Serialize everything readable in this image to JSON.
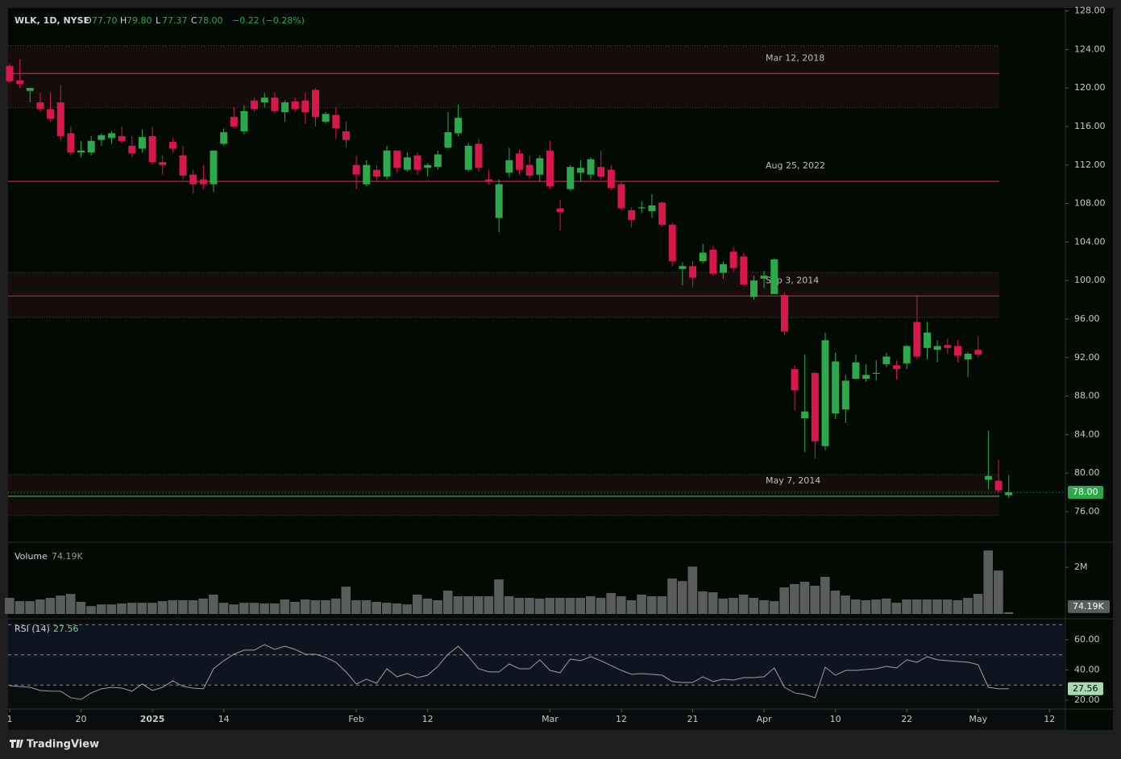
{
  "chart_data": [
    {
      "type": "candlestick",
      "symbol": "WLK, 1D, NYSE",
      "legend": [
        {
          "key": "O",
          "value": "77.70"
        },
        {
          "key": "H",
          "value": "79.80"
        },
        {
          "key": "L",
          "value": "77.37"
        },
        {
          "key": "C",
          "value": "78.00"
        }
      ],
      "change": "−0.22 (−0.28%)",
      "up_color": "#2ea84c",
      "down_color": "#d8174a",
      "ylim": [
        72.9,
        128.3
      ],
      "yticks": [
        {
          "value": 76,
          "label": "76.00"
        },
        {
          "value": 80,
          "label": "80.00"
        },
        {
          "value": 84,
          "label": "84.00"
        },
        {
          "value": 88,
          "label": "88.00"
        },
        {
          "value": 92,
          "label": "92.00"
        },
        {
          "value": 96,
          "label": "96.00"
        },
        {
          "value": 100,
          "label": "100.00"
        },
        {
          "value": 104,
          "label": "104.00"
        },
        {
          "value": 108,
          "label": "108.00"
        },
        {
          "value": 112,
          "label": "112.00"
        },
        {
          "value": 116,
          "label": "116.00"
        },
        {
          "value": 120,
          "label": "120.00"
        },
        {
          "value": 124,
          "label": "124.00"
        },
        {
          "value": 128,
          "label": "128.00"
        }
      ],
      "xticks": [
        {
          "value": 0,
          "label": "1"
        },
        {
          "value": 7,
          "label": "20"
        },
        {
          "value": 14,
          "label": "2025"
        },
        {
          "value": 21,
          "label": "14"
        },
        {
          "value": 34,
          "label": "Feb"
        },
        {
          "value": 41,
          "label": "12"
        },
        {
          "value": 53,
          "label": "Mar"
        },
        {
          "value": 60,
          "label": "12"
        },
        {
          "value": 67,
          "label": "21"
        },
        {
          "value": 74,
          "label": "Apr"
        },
        {
          "value": 81,
          "label": "10"
        },
        {
          "value": 88,
          "label": "22"
        },
        {
          "value": 95,
          "label": "May"
        },
        {
          "value": 102,
          "label": "12"
        }
      ],
      "last": {
        "value": 78,
        "label": "78.00"
      },
      "levels": [
        {
          "label": "Mar 12, 2018",
          "value": 121.5,
          "zone": [
            117.95,
            124.4
          ],
          "color": "#d8174a"
        },
        {
          "label": "Aug 25, 2022",
          "value": 110.3,
          "color": "#d8174a"
        },
        {
          "label": "Sep 3, 2014",
          "value": 98.4,
          "zone": [
            96.15,
            100.85
          ],
          "color": "#d8174a"
        },
        {
          "label": "May 7, 2014",
          "value": 77.6,
          "zone": [
            75.6,
            79.85
          ],
          "color": "#2ea84c"
        }
      ],
      "open": [
        122.3,
        120.8,
        119.7,
        118.5,
        117.8,
        118.5,
        115.3,
        113.3,
        113.3,
        114.6,
        114.8,
        115,
        114,
        113.7,
        115,
        112.3,
        114.4,
        113,
        111,
        110.5,
        110,
        114.2,
        117,
        115.5,
        118.7,
        118.5,
        119,
        117.5,
        118.6,
        118.7,
        119.8,
        116.5,
        117.2,
        115.5,
        112,
        110,
        111.5,
        110.8,
        113.5,
        111.5,
        113,
        111.7,
        111.8,
        113.8,
        115.3,
        111.5,
        114.2,
        110.5,
        106.5,
        111.2,
        113.2,
        112,
        111,
        113.5,
        107.5,
        109.5,
        111.2,
        111,
        111.8,
        111.5,
        110,
        107.3,
        107.5,
        107.2,
        108.1,
        105.8,
        101.2,
        101.5,
        102,
        103.2,
        100.8,
        103,
        102.5,
        98.3,
        100.2,
        98.6,
        98.5,
        90.8,
        85.7,
        90.4,
        82.8,
        86.2,
        86.6,
        89.8,
        89.8,
        90.3,
        91.3,
        91.2,
        91.4,
        95.7,
        93,
        92.8,
        93.3,
        93.2,
        91.8,
        92.8,
        79.3,
        79.2,
        77.7
      ],
      "high": [
        122.5,
        123,
        120,
        119.5,
        119.5,
        120.3,
        116,
        114.5,
        115,
        115.3,
        115.5,
        116,
        115,
        115.7,
        116,
        113,
        114.8,
        114,
        111.5,
        112,
        113.5,
        115.8,
        118,
        118.2,
        119,
        119.5,
        119.5,
        118.7,
        119,
        119.5,
        120,
        117.5,
        118,
        116.5,
        113,
        112.5,
        112,
        114,
        113.5,
        113.3,
        113.3,
        112.2,
        113.5,
        117.5,
        118.3,
        114.3,
        114.7,
        111.5,
        110.5,
        113.8,
        113.6,
        113,
        113,
        114.5,
        108.4,
        112,
        112.5,
        112.8,
        113.5,
        112,
        110.2,
        107.6,
        108.2,
        109,
        108.2,
        106,
        101.9,
        102,
        103.8,
        103.6,
        102,
        103.5,
        102.9,
        100.5,
        101,
        102.3,
        98.8,
        91.2,
        92.3,
        90.5,
        94.6,
        92.5,
        90.2,
        92.3,
        91.3,
        91.7,
        92.5,
        91.7,
        93.3,
        98.5,
        95.7,
        93.8,
        94,
        93.8,
        92.6,
        94.2,
        84.4,
        81.4,
        79.8
      ],
      "low": [
        120.5,
        120,
        118.5,
        117.5,
        116.5,
        114.5,
        113,
        112.8,
        113,
        114,
        114.2,
        114.3,
        112.8,
        113.3,
        112,
        111,
        113.3,
        110.5,
        109,
        109.5,
        109.2,
        114,
        115.8,
        115.2,
        117.5,
        118,
        117.3,
        116.5,
        117.5,
        116.3,
        116,
        116.3,
        114.7,
        113.8,
        109.5,
        109.8,
        110.2,
        110.5,
        111.2,
        111.3,
        111,
        110.8,
        111.5,
        113.7,
        115,
        111.3,
        111.3,
        110,
        105,
        110.7,
        111,
        110.6,
        110.3,
        109.5,
        105.2,
        109.3,
        110.3,
        110.5,
        110.5,
        109.4,
        107.3,
        105.5,
        107,
        106.5,
        105.6,
        101.5,
        99.5,
        99.3,
        101.8,
        100.5,
        100.2,
        100.9,
        99.4,
        98,
        99.2,
        98.6,
        94.3,
        86.5,
        82.2,
        81.5,
        82.4,
        85.6,
        85.2,
        89.7,
        89.5,
        89.6,
        91,
        89.7,
        90.8,
        91.8,
        91.8,
        91.5,
        92.4,
        91.5,
        90,
        92,
        78.3,
        78,
        77.4
      ],
      "close": [
        120.7,
        120.4,
        120,
        117.8,
        116.8,
        115,
        113.3,
        113.5,
        114.5,
        115.1,
        115.3,
        114.5,
        113.2,
        114.9,
        112.3,
        112,
        113.7,
        110.9,
        110,
        110,
        113.5,
        115.4,
        116,
        117.6,
        117.8,
        119,
        117.6,
        118.5,
        117.8,
        117.5,
        117,
        117.3,
        115.8,
        114.6,
        111,
        112,
        110.8,
        113.5,
        111.7,
        112.8,
        111.5,
        112,
        113.1,
        115.4,
        116.9,
        114,
        111.7,
        110.3,
        110,
        112.5,
        111.5,
        110.9,
        112.7,
        109.8,
        107.1,
        111.8,
        111.7,
        112.6,
        110.8,
        109.6,
        107.5,
        106.3,
        107.6,
        107.8,
        105.8,
        102,
        101.5,
        100.3,
        102.9,
        100.7,
        101.7,
        101.3,
        99.6,
        100,
        100.5,
        102.2,
        94.7,
        88.6,
        86.4,
        83.3,
        93.8,
        91.6,
        89.6,
        91.5,
        90.2,
        90.4,
        92.1,
        90.8,
        93.2,
        92.1,
        94.6,
        93.2,
        93,
        92.2,
        92.4,
        92.3,
        79.7,
        78.2,
        78
      ]
    },
    {
      "type": "bar",
      "title": "Volume",
      "last_label": "74.19K",
      "color": "#5b5c5e",
      "ylim": [
        0,
        2830000
      ],
      "yticks": [
        {
          "value": 2000000,
          "label": "2M"
        }
      ],
      "values": [
        690000,
        550000,
        550000,
        620000,
        690000,
        790000,
        860000,
        520000,
        340000,
        410000,
        410000,
        450000,
        480000,
        480000,
        480000,
        550000,
        590000,
        590000,
        590000,
        660000,
        830000,
        480000,
        410000,
        480000,
        480000,
        450000,
        450000,
        620000,
        520000,
        620000,
        590000,
        590000,
        660000,
        1170000,
        590000,
        590000,
        520000,
        480000,
        450000,
        410000,
        830000,
        660000,
        590000,
        1000000,
        760000,
        760000,
        760000,
        760000,
        1480000,
        760000,
        690000,
        690000,
        660000,
        690000,
        690000,
        690000,
        690000,
        760000,
        690000,
        900000,
        760000,
        590000,
        830000,
        760000,
        760000,
        1520000,
        1410000,
        2030000,
        970000,
        930000,
        660000,
        690000,
        830000,
        690000,
        590000,
        550000,
        1140000,
        1280000,
        1380000,
        1210000,
        1590000,
        1000000,
        790000,
        620000,
        590000,
        620000,
        660000,
        480000,
        620000,
        620000,
        620000,
        620000,
        620000,
        590000,
        690000,
        860000,
        2720000,
        1860000,
        74190
      ]
    },
    {
      "type": "line",
      "title": "RSI (14)",
      "last_label": "27.56",
      "color": "#9e9e9e",
      "band_color": "#0e1520",
      "ylim": [
        14.1,
        72.8
      ],
      "bands": [
        70,
        50,
        30
      ],
      "yticks": [
        {
          "value": 20,
          "label": "20.00"
        },
        {
          "value": 40,
          "label": "40.00"
        },
        {
          "value": 60,
          "label": "60.00"
        }
      ],
      "values": [
        29.6,
        29,
        28.5,
        26.4,
        26,
        25.9,
        21.6,
        20.5,
        24.8,
        27.5,
        28.5,
        28,
        25.9,
        30.7,
        26.4,
        28.5,
        32.8,
        29.1,
        28,
        27.5,
        40.8,
        46.1,
        50.4,
        53.1,
        53.1,
        56.8,
        53.6,
        55.7,
        53.6,
        50.4,
        50.4,
        48.3,
        45.1,
        38.7,
        30.7,
        33.9,
        31.2,
        40.8,
        35.5,
        37.6,
        34.9,
        36.5,
        42.4,
        50.4,
        55.7,
        48.8,
        40.8,
        38.7,
        38.7,
        44,
        40.8,
        40.8,
        46.7,
        39.7,
        38.1,
        47.2,
        46.1,
        48.8,
        46.1,
        42.9,
        39.7,
        37.1,
        37.6,
        37.1,
        36.5,
        32.3,
        31.7,
        31.7,
        35.5,
        32.3,
        33.9,
        33.3,
        34.9,
        34.9,
        35.5,
        41.3,
        28.5,
        24.8,
        23.7,
        21.6,
        41.9,
        36.5,
        39.7,
        39.7,
        40.3,
        40.8,
        42.4,
        41.3,
        46.7,
        45.1,
        48.8,
        46.7,
        46.1,
        45.6,
        45.1,
        43.5,
        28.5,
        27.5,
        27.56
      ]
    }
  ],
  "footer": {
    "brand": "TradingView"
  }
}
